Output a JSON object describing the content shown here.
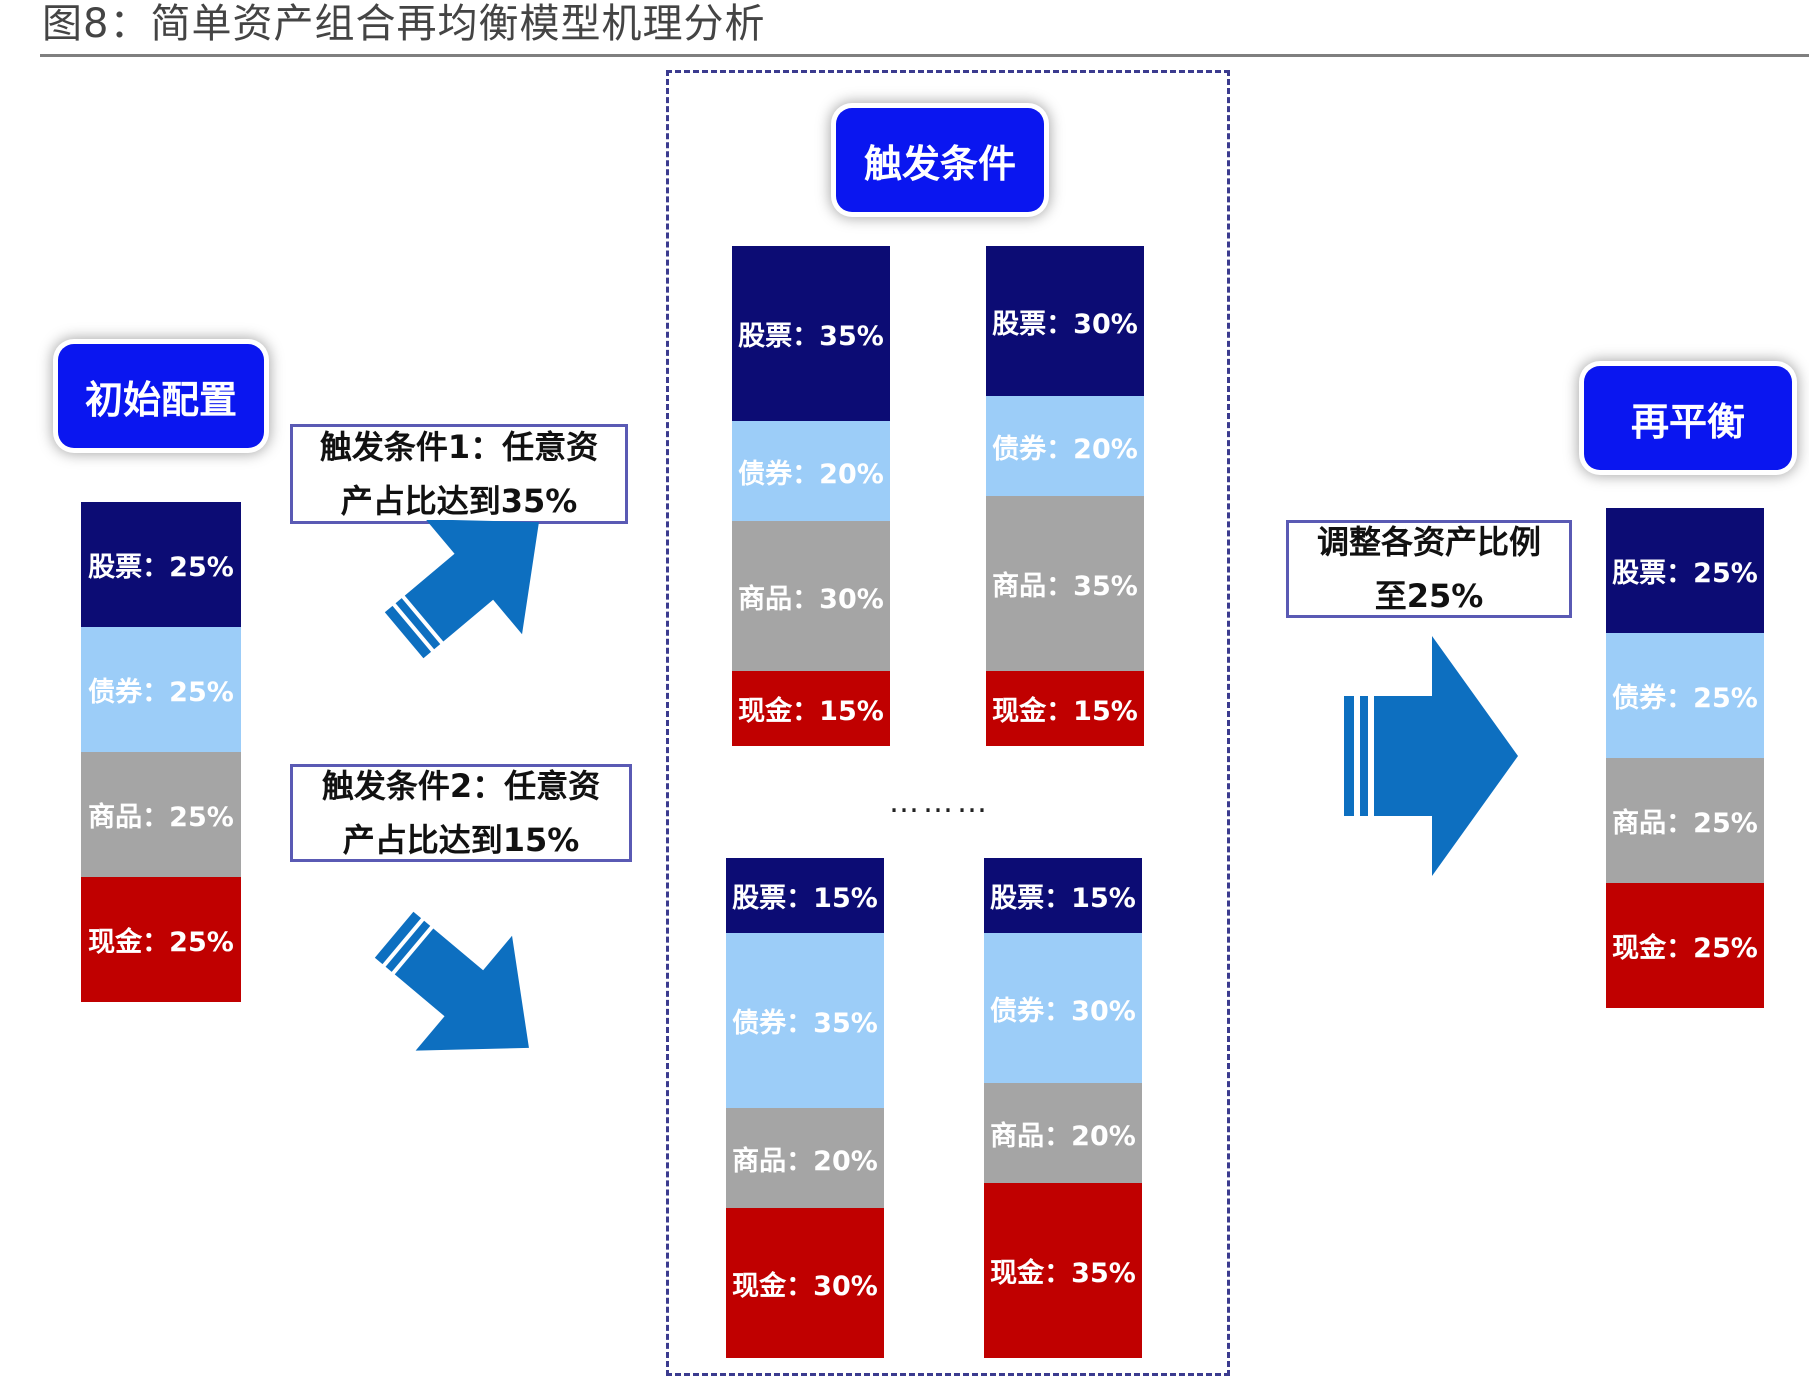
{
  "figure": {
    "title": "图8：简单资产组合再均衡模型机理分析"
  },
  "stages": {
    "initial": "初始配置",
    "trigger": "触发条件",
    "rebalance": "再平衡"
  },
  "notes": {
    "condition1": {
      "line1": "触发条件1：任意资",
      "line2": "产占比达到35%"
    },
    "condition2": {
      "line1": "触发条件2：任意资",
      "line2": "产占比达到15%"
    },
    "adjust": {
      "line1": "调整各资产比例",
      "line2": "至25%"
    }
  },
  "ellipsis": "………",
  "colors": {
    "stock": "#0c0c74",
    "bond": "#9ccdf8",
    "commodity": "#a5a5a5",
    "cash": "#c00000",
    "badge": "#0a16f0",
    "arrow": "#0d6fc0"
  },
  "allocations": {
    "initial": [
      {
        "asset": "stock",
        "label": "股票：25%",
        "pct": 25
      },
      {
        "asset": "bond",
        "label": "债券：25%",
        "pct": 25
      },
      {
        "asset": "commodity",
        "label": "商品：25%",
        "pct": 25
      },
      {
        "asset": "cash",
        "label": "现金：25%",
        "pct": 25
      }
    ],
    "case_a": [
      {
        "asset": "stock",
        "label": "股票：35%",
        "pct": 35
      },
      {
        "asset": "bond",
        "label": "债券：20%",
        "pct": 20
      },
      {
        "asset": "commodity",
        "label": "商品：30%",
        "pct": 30
      },
      {
        "asset": "cash",
        "label": "现金：15%",
        "pct": 15
      }
    ],
    "case_b": [
      {
        "asset": "stock",
        "label": "股票：30%",
        "pct": 30
      },
      {
        "asset": "bond",
        "label": "债券：20%",
        "pct": 20
      },
      {
        "asset": "commodity",
        "label": "商品：35%",
        "pct": 35
      },
      {
        "asset": "cash",
        "label": "现金：15%",
        "pct": 15
      }
    ],
    "case_c": [
      {
        "asset": "stock",
        "label": "股票：15%",
        "pct": 15
      },
      {
        "asset": "bond",
        "label": "债券：35%",
        "pct": 35
      },
      {
        "asset": "commodity",
        "label": "商品：20%",
        "pct": 20
      },
      {
        "asset": "cash",
        "label": "现金：30%",
        "pct": 30
      }
    ],
    "case_d": [
      {
        "asset": "stock",
        "label": "股票：15%",
        "pct": 15
      },
      {
        "asset": "bond",
        "label": "债券：30%",
        "pct": 30
      },
      {
        "asset": "commodity",
        "label": "商品：20%",
        "pct": 20
      },
      {
        "asset": "cash",
        "label": "现金：35%",
        "pct": 35
      }
    ],
    "rebalanced": [
      {
        "asset": "stock",
        "label": "股票：25%",
        "pct": 25
      },
      {
        "asset": "bond",
        "label": "债券：25%",
        "pct": 25
      },
      {
        "asset": "commodity",
        "label": "商品：25%",
        "pct": 25
      },
      {
        "asset": "cash",
        "label": "现金：25%",
        "pct": 25
      }
    ]
  }
}
